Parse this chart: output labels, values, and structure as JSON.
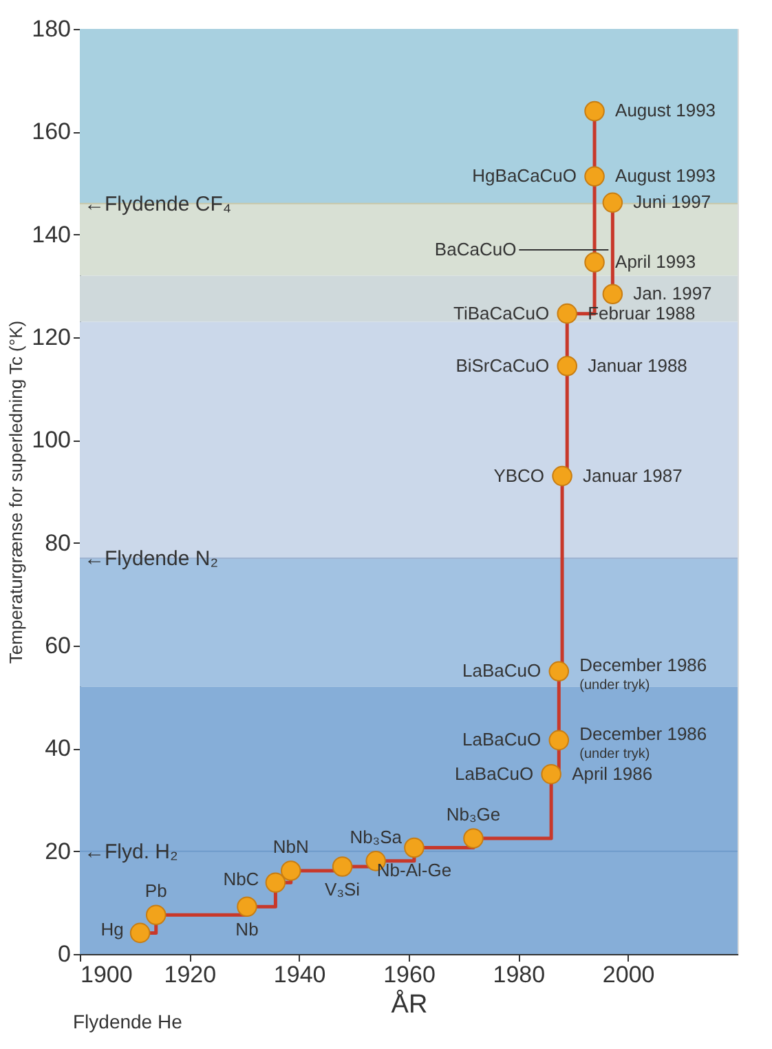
{
  "chart_data": {
    "type": "step",
    "xlabel": "ÅR",
    "ylabel": "Temperaturgrænse for superledning Tc (°K)",
    "xlim": [
      1900,
      2020
    ],
    "xticks": [
      1900,
      1920,
      1940,
      1960,
      1980,
      2000
    ],
    "ylim": [
      0,
      180
    ],
    "yticks": [
      0,
      20,
      40,
      60,
      80,
      100,
      120,
      140,
      160,
      180
    ],
    "grid": false,
    "marker": "circle",
    "line_style": "solid",
    "series": [
      {
        "color": "#c8382a",
        "x": [
          1911,
          1913.9,
          1930.5,
          1935.7,
          1938.5,
          1947.9,
          1954,
          1961,
          1971.8,
          1986,
          1987.4,
          1987.4,
          1988,
          1988.9,
          1988.9,
          1993.9,
          1993.9,
          1993.9
        ],
        "values": [
          4.1,
          7.6,
          9.2,
          13.9,
          16.2,
          17.0,
          18.1,
          20.7,
          22.5,
          35,
          41.6,
          55,
          93,
          114.4,
          124.6,
          134.6,
          151.3,
          164
        ]
      },
      {
        "color": "#c8382a",
        "x": [
          1997.2,
          1997.2
        ],
        "values": [
          128.4,
          146.2
        ]
      }
    ],
    "bands": [
      {
        "axis": "y",
        "from": 0,
        "to": 52,
        "color": "#86aed8"
      },
      {
        "axis": "y",
        "from": 52,
        "to": 77,
        "color": "#a2c2e2"
      },
      {
        "axis": "y",
        "from": 77,
        "to": 123,
        "color": "#cbd8ea"
      },
      {
        "axis": "y",
        "from": 123,
        "to": 132,
        "color": "#cfd9db"
      },
      {
        "axis": "y",
        "from": 132,
        "to": 146,
        "color": "#d8e0d4"
      },
      {
        "axis": "y",
        "from": 146,
        "to": 180,
        "color": "#a8d0e0"
      }
    ],
    "ref_lines": [
      {
        "axis": "y",
        "value": 146,
        "label": "←Flydende CF₄",
        "color": "#c9c7a8"
      },
      {
        "axis": "y",
        "value": 77,
        "label": "←Flydende N₂",
        "color": "#9fb4d2"
      },
      {
        "axis": "y",
        "value": 20,
        "label": "←Flyd. H₂",
        "color": "#6f9bcb"
      }
    ],
    "annotations": [
      {
        "text": "Hg",
        "x": 1911,
        "y": 4.1
      },
      {
        "text": "Pb",
        "x": 1913.9,
        "y": 7.6
      },
      {
        "text": "Nb",
        "x": 1930.5,
        "y": 9.2
      },
      {
        "text": "NbC",
        "x": 1935.7,
        "y": 13.9
      },
      {
        "text": "NbN",
        "x": 1938.5,
        "y": 16.2
      },
      {
        "text": "V₃Si",
        "x": 1947.9,
        "y": 17.0
      },
      {
        "text": "Nb₃Sa",
        "x": 1954,
        "y": 18.1
      },
      {
        "text": "Nb-Al-Ge",
        "x": 1961,
        "y": 20.7
      },
      {
        "text": "Nb₃Ge",
        "x": 1971.8,
        "y": 22.5
      },
      {
        "text": "LaBaCuO",
        "x": 1986,
        "y": 35
      },
      {
        "text": "April 1986",
        "x": 1986,
        "y": 35
      },
      {
        "text": "LaBaCuO",
        "x": 1987.4,
        "y": 41.6
      },
      {
        "text": "December 1986",
        "x": 1987.4,
        "y": 41.6
      },
      {
        "text": "(under tryk)",
        "x": 1987.4,
        "y": 41.6
      },
      {
        "text": "LaBaCuO",
        "x": 1987.4,
        "y": 55
      },
      {
        "text": "December 1986",
        "x": 1987.4,
        "y": 55
      },
      {
        "text": "(under tryk)",
        "x": 1987.4,
        "y": 55
      },
      {
        "text": "YBCO",
        "x": 1988,
        "y": 93
      },
      {
        "text": "Januar 1987",
        "x": 1988,
        "y": 93
      },
      {
        "text": "BiSrCaCuO",
        "x": 1988.9,
        "y": 114.4
      },
      {
        "text": "Januar 1988",
        "x": 1988.9,
        "y": 114.4
      },
      {
        "text": "TiBaCaCuO",
        "x": 1988.9,
        "y": 124.6
      },
      {
        "text": "Februar 1988",
        "x": 1988.9,
        "y": 124.6
      },
      {
        "text": "Jan. 1997",
        "x": 1997.2,
        "y": 128.4
      },
      {
        "text": "April 1993",
        "x": 1993.9,
        "y": 134.6
      },
      {
        "text": "BaCaCuO",
        "x": 1997.2,
        "y": 137
      },
      {
        "text": "Juni 1997",
        "x": 1997.2,
        "y": 146.2
      },
      {
        "text": "HgBaCaCuO",
        "x": 1993.9,
        "y": 151.3
      },
      {
        "text": "August 1993",
        "x": 1993.9,
        "y": 151.3
      },
      {
        "text": "August 1993",
        "x": 1993.9,
        "y": 164
      },
      "Flydende He"
    ]
  }
}
